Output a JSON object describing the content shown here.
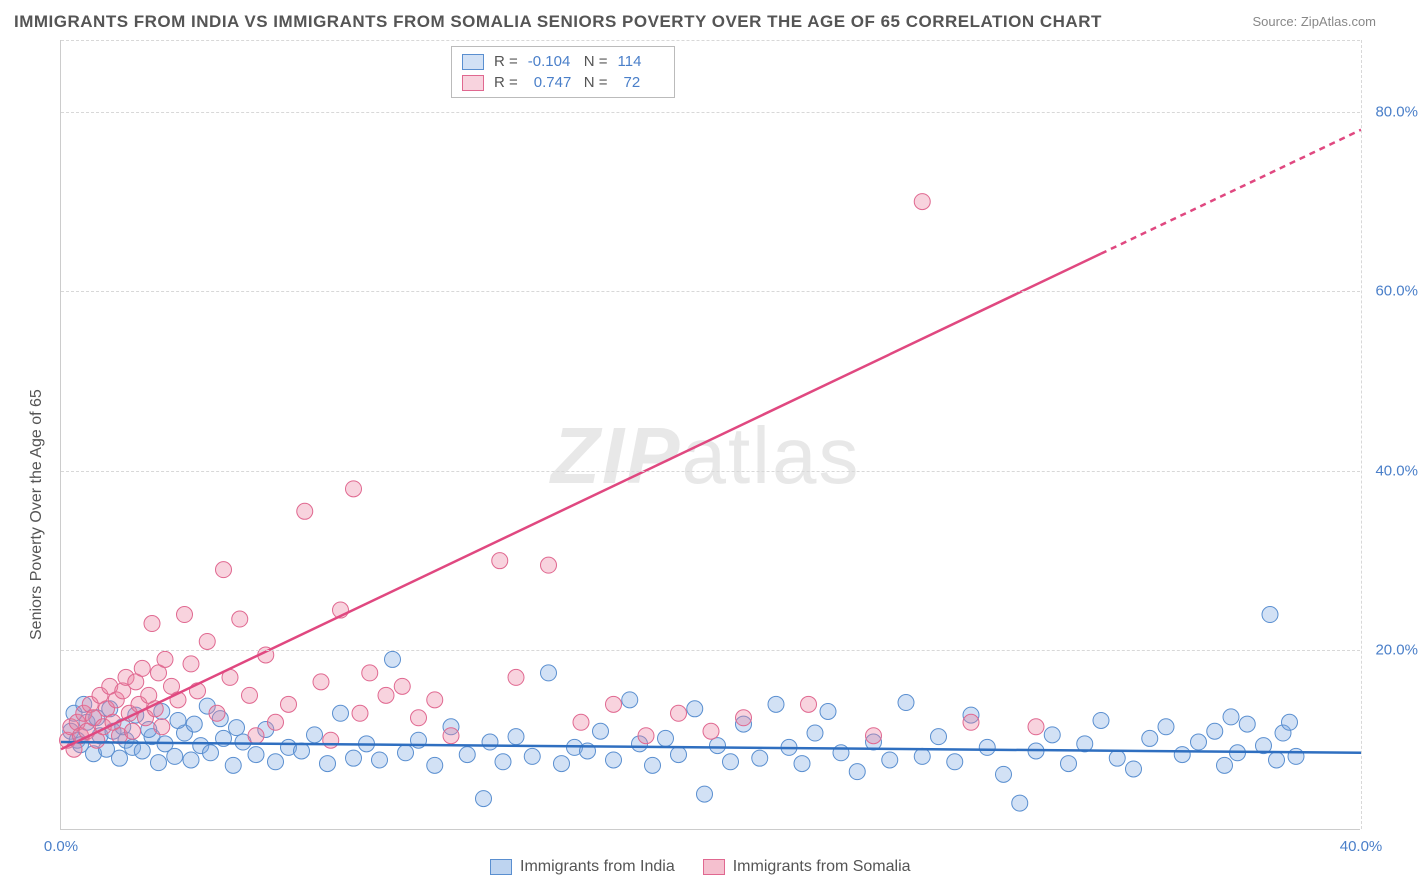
{
  "title": "IMMIGRANTS FROM INDIA VS IMMIGRANTS FROM SOMALIA SENIORS POVERTY OVER THE AGE OF 65 CORRELATION CHART",
  "source": "Source: ZipAtlas.com",
  "ylabel": "Seniors Poverty Over the Age of 65",
  "watermark_zip": "ZIP",
  "watermark_atlas": "atlas",
  "chart": {
    "type": "scatter",
    "xlim": [
      0,
      40
    ],
    "ylim": [
      0,
      88
    ],
    "xticks": [
      0,
      40
    ],
    "yticks": [
      20,
      40,
      60,
      80
    ],
    "xtick_labels": [
      "0.0%",
      "40.0%"
    ],
    "ytick_labels": [
      "20.0%",
      "40.0%",
      "60.0%",
      "80.0%"
    ],
    "grid_color": "#d8d8d8",
    "background_color": "#ffffff",
    "axis_color": "#cccccc",
    "tick_color": "#4a7fc9",
    "point_radius": 8,
    "line_width": 2.5,
    "series": [
      {
        "name": "Immigrants from India",
        "color_fill": "rgba(125,170,225,0.35)",
        "color_stroke": "#5a8fd0",
        "R": "-0.104",
        "N": "114",
        "trend": {
          "x1": 0,
          "y1": 9.8,
          "x2": 40,
          "y2": 8.6,
          "dash_from_x": null,
          "color": "#2f6fc0"
        },
        "points": [
          [
            0.3,
            11
          ],
          [
            0.5,
            10
          ],
          [
            0.6,
            9.5
          ],
          [
            0.8,
            12
          ],
          [
            1,
            8.5
          ],
          [
            1.2,
            10.5
          ],
          [
            1.4,
            9
          ],
          [
            1.6,
            11
          ],
          [
            1.8,
            8
          ],
          [
            2,
            10
          ],
          [
            2.2,
            9.2
          ],
          [
            2.5,
            8.8
          ],
          [
            2.8,
            10.4
          ],
          [
            3,
            7.5
          ],
          [
            3.2,
            9.6
          ],
          [
            3.5,
            8.2
          ],
          [
            3.8,
            10.8
          ],
          [
            4,
            7.8
          ],
          [
            4.3,
            9.4
          ],
          [
            4.6,
            8.6
          ],
          [
            5,
            10.2
          ],
          [
            5.3,
            7.2
          ],
          [
            5.6,
            9.8
          ],
          [
            6,
            8.4
          ],
          [
            6.3,
            11.2
          ],
          [
            6.6,
            7.6
          ],
          [
            7,
            9.2
          ],
          [
            7.4,
            8.8
          ],
          [
            7.8,
            10.6
          ],
          [
            8.2,
            7.4
          ],
          [
            8.6,
            13
          ],
          [
            9,
            8
          ],
          [
            9.4,
            9.6
          ],
          [
            9.8,
            7.8
          ],
          [
            10.2,
            19
          ],
          [
            10.6,
            8.6
          ],
          [
            11,
            10
          ],
          [
            11.5,
            7.2
          ],
          [
            12,
            11.5
          ],
          [
            12.5,
            8.4
          ],
          [
            13,
            3.5
          ],
          [
            13.2,
            9.8
          ],
          [
            13.6,
            7.6
          ],
          [
            14,
            10.4
          ],
          [
            14.5,
            8.2
          ],
          [
            15,
            17.5
          ],
          [
            15.4,
            7.4
          ],
          [
            15.8,
            9.2
          ],
          [
            16.2,
            8.8
          ],
          [
            16.6,
            11
          ],
          [
            17,
            7.8
          ],
          [
            17.5,
            14.5
          ],
          [
            17.8,
            9.6
          ],
          [
            18.2,
            7.2
          ],
          [
            18.6,
            10.2
          ],
          [
            19,
            8.4
          ],
          [
            19.5,
            13.5
          ],
          [
            19.8,
            4
          ],
          [
            20.2,
            9.4
          ],
          [
            20.6,
            7.6
          ],
          [
            21,
            11.8
          ],
          [
            21.5,
            8
          ],
          [
            22,
            14
          ],
          [
            22.4,
            9.2
          ],
          [
            22.8,
            7.4
          ],
          [
            23.2,
            10.8
          ],
          [
            23.6,
            13.2
          ],
          [
            24,
            8.6
          ],
          [
            24.5,
            6.5
          ],
          [
            25,
            9.8
          ],
          [
            25.5,
            7.8
          ],
          [
            26,
            14.2
          ],
          [
            26.5,
            8.2
          ],
          [
            27,
            10.4
          ],
          [
            27.5,
            7.6
          ],
          [
            28,
            12.8
          ],
          [
            28.5,
            9.2
          ],
          [
            29,
            6.2
          ],
          [
            29.5,
            3
          ],
          [
            30,
            8.8
          ],
          [
            30.5,
            10.6
          ],
          [
            31,
            7.4
          ],
          [
            31.5,
            9.6
          ],
          [
            32,
            12.2
          ],
          [
            32.5,
            8
          ],
          [
            33,
            6.8
          ],
          [
            33.5,
            10.2
          ],
          [
            34,
            11.5
          ],
          [
            34.5,
            8.4
          ],
          [
            35,
            9.8
          ],
          [
            35.5,
            11
          ],
          [
            35.8,
            7.2
          ],
          [
            36,
            12.6
          ],
          [
            36.2,
            8.6
          ],
          [
            36.5,
            11.8
          ],
          [
            37,
            9.4
          ],
          [
            37.2,
            24
          ],
          [
            37.4,
            7.8
          ],
          [
            37.6,
            10.8
          ],
          [
            37.8,
            12
          ],
          [
            38,
            8.2
          ],
          [
            0.4,
            13
          ],
          [
            0.7,
            14
          ],
          [
            1.1,
            12.5
          ],
          [
            1.5,
            13.5
          ],
          [
            1.9,
            11.5
          ],
          [
            2.3,
            12.8
          ],
          [
            2.7,
            11.2
          ],
          [
            3.1,
            13.2
          ],
          [
            3.6,
            12.2
          ],
          [
            4.1,
            11.8
          ],
          [
            4.5,
            13.8
          ],
          [
            4.9,
            12.4
          ],
          [
            5.4,
            11.4
          ]
        ]
      },
      {
        "name": "Immigrants from Somalia",
        "color_fill": "rgba(235,130,160,0.35)",
        "color_stroke": "#e06890",
        "R": "0.747",
        "N": "72",
        "trend": {
          "x1": 0,
          "y1": 9,
          "x2": 40,
          "y2": 78,
          "dash_from_x": 32,
          "color": "#e04880"
        },
        "points": [
          [
            0.2,
            10
          ],
          [
            0.3,
            11.5
          ],
          [
            0.4,
            9
          ],
          [
            0.5,
            12
          ],
          [
            0.6,
            10.5
          ],
          [
            0.7,
            13
          ],
          [
            0.8,
            11
          ],
          [
            0.9,
            14
          ],
          [
            1,
            12.5
          ],
          [
            1.1,
            10
          ],
          [
            1.2,
            15
          ],
          [
            1.3,
            11.5
          ],
          [
            1.4,
            13.5
          ],
          [
            1.5,
            16
          ],
          [
            1.6,
            12
          ],
          [
            1.7,
            14.5
          ],
          [
            1.8,
            10.5
          ],
          [
            1.9,
            15.5
          ],
          [
            2,
            17
          ],
          [
            2.1,
            13
          ],
          [
            2.2,
            11
          ],
          [
            2.3,
            16.5
          ],
          [
            2.4,
            14
          ],
          [
            2.5,
            18
          ],
          [
            2.6,
            12.5
          ],
          [
            2.7,
            15
          ],
          [
            2.8,
            23
          ],
          [
            2.9,
            13.5
          ],
          [
            3,
            17.5
          ],
          [
            3.1,
            11.5
          ],
          [
            3.2,
            19
          ],
          [
            3.4,
            16
          ],
          [
            3.6,
            14.5
          ],
          [
            3.8,
            24
          ],
          [
            4,
            18.5
          ],
          [
            4.2,
            15.5
          ],
          [
            4.5,
            21
          ],
          [
            4.8,
            13
          ],
          [
            5,
            29
          ],
          [
            5.2,
            17
          ],
          [
            5.5,
            23.5
          ],
          [
            5.8,
            15
          ],
          [
            6,
            10.5
          ],
          [
            6.3,
            19.5
          ],
          [
            6.6,
            12
          ],
          [
            7,
            14
          ],
          [
            7.5,
            35.5
          ],
          [
            8,
            16.5
          ],
          [
            8.3,
            10
          ],
          [
            8.6,
            24.5
          ],
          [
            9,
            38
          ],
          [
            9.2,
            13
          ],
          [
            9.5,
            17.5
          ],
          [
            10,
            15
          ],
          [
            10.5,
            16
          ],
          [
            11,
            12.5
          ],
          [
            11.5,
            14.5
          ],
          [
            12,
            10.5
          ],
          [
            13.5,
            30
          ],
          [
            14,
            17
          ],
          [
            15,
            29.5
          ],
          [
            16,
            12
          ],
          [
            17,
            14
          ],
          [
            18,
            10.5
          ],
          [
            19,
            13
          ],
          [
            20,
            11
          ],
          [
            21,
            12.5
          ],
          [
            23,
            14
          ],
          [
            25,
            10.5
          ],
          [
            26.5,
            70
          ],
          [
            28,
            12
          ],
          [
            30,
            11.5
          ]
        ]
      }
    ],
    "legend_bottom": [
      {
        "label": "Immigrants from India",
        "fill": "rgba(125,170,225,0.5)",
        "stroke": "#5a8fd0"
      },
      {
        "label": "Immigrants from Somalia",
        "fill": "rgba(235,130,160,0.5)",
        "stroke": "#e06890"
      }
    ],
    "legend_top_labels": {
      "R": "R =",
      "N": "N ="
    }
  }
}
